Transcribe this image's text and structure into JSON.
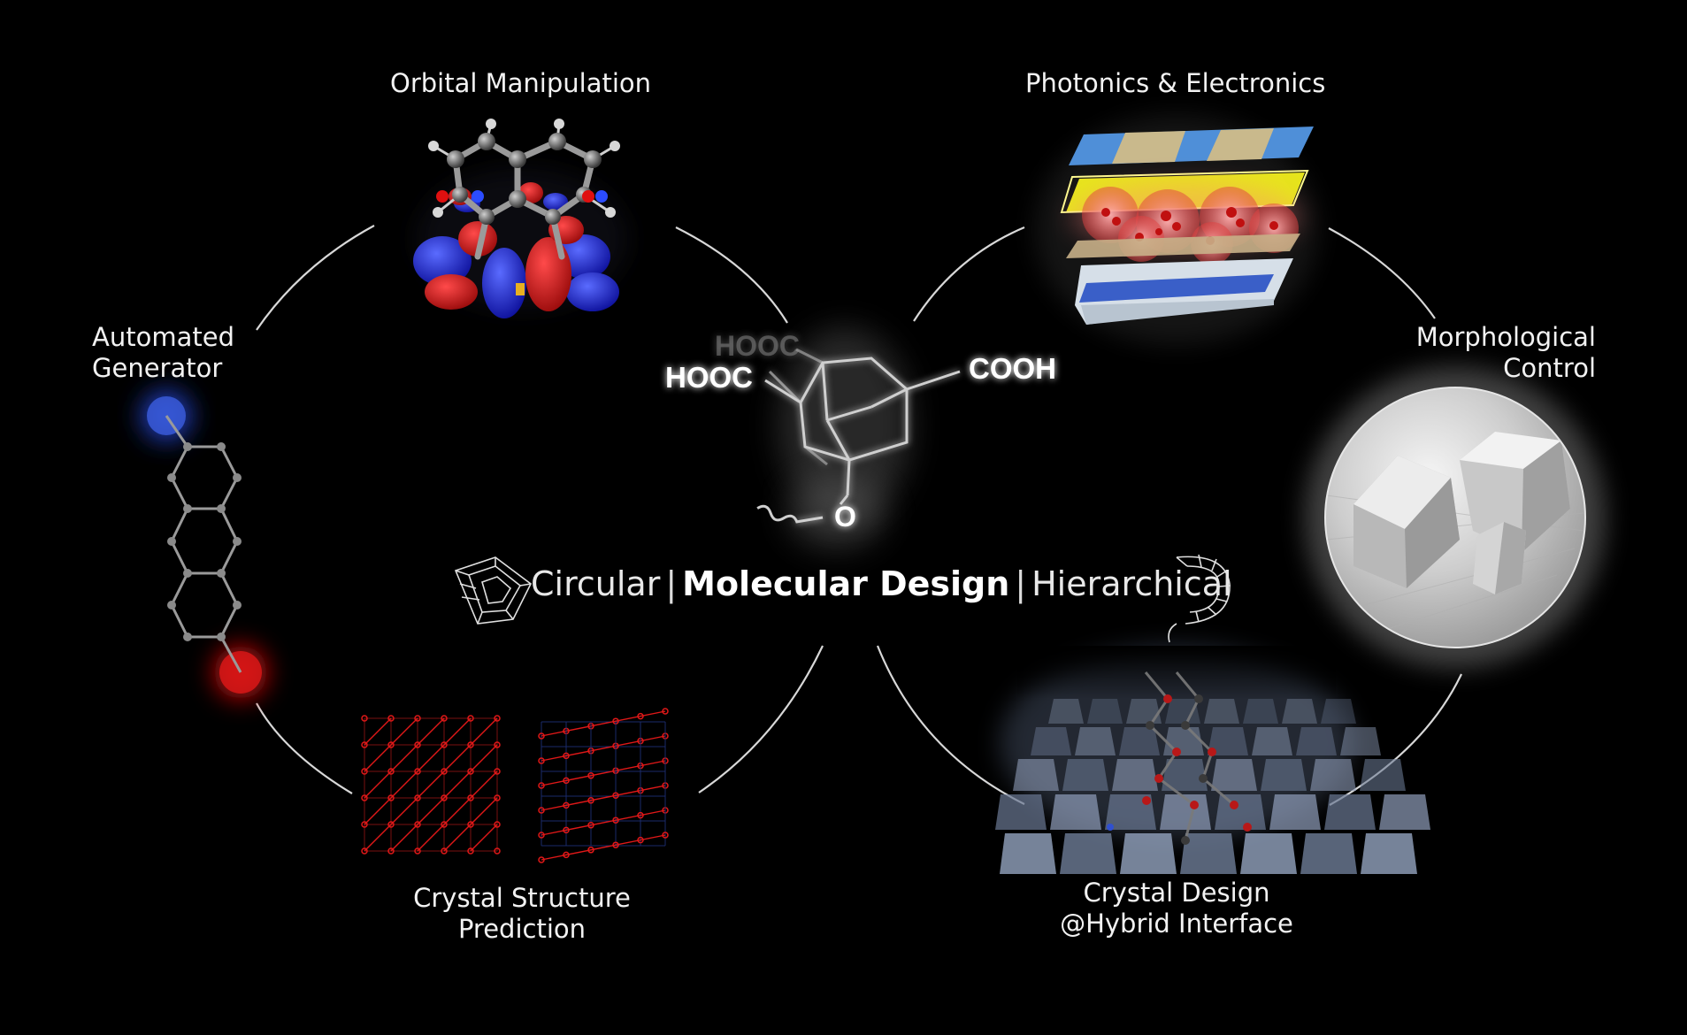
{
  "labels": {
    "orbital": "Orbital Manipulation",
    "photonics": "Photonics & Electronics",
    "automated_line1": "Automated",
    "automated_line2": "Generator",
    "morphological_line1": "Morphological",
    "morphological_line2": "Control",
    "crystal_structure_line1": "Crystal Structure",
    "crystal_structure_line2": "Prediction",
    "crystal_design_line1": "Crystal Design",
    "crystal_design_line2": "@Hybrid Interface"
  },
  "center": {
    "left": "Circular",
    "separator": "|",
    "main": "Molecular Design",
    "right": "Hierarchical"
  },
  "molecule": {
    "hooc_back": "HOOC",
    "hooc_front": "HOOC",
    "cooh": "COOH",
    "oxygen": "O"
  },
  "colors": {
    "background": "#000000",
    "orbital_red": "#d8101a",
    "orbital_blue": "#1a1ed8",
    "lattice_red": "#e01818",
    "layer_blue": "#5aa0e0",
    "layer_yellow": "#f0f020",
    "layer_gold": "#d8c090"
  }
}
